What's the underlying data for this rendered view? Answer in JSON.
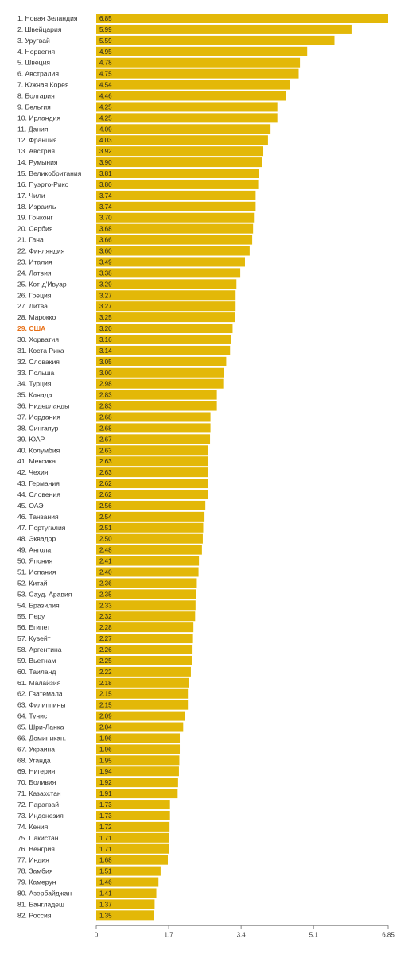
{
  "chart_data": {
    "type": "bar",
    "orientation": "horizontal",
    "bar_color": "#e3b808",
    "highlight_color": "#e8721a",
    "highlight_category": "29. США",
    "xlim": [
      0,
      6.85
    ],
    "xticks": [
      "0",
      "1.7",
      "3.4",
      "5.1",
      "6.85"
    ],
    "grid": false,
    "categories": [
      "1. Новая Зеландия",
      "2. Швейцария",
      "3. Уругвай",
      "4. Норвегия",
      "5. Швеция",
      "6. Австралия",
      "7. Южная Корея",
      "8. Болгария",
      "9. Бельгия",
      "10. Ирландия",
      "11. Дания",
      "12. Франция",
      "13. Австрия",
      "14. Румыния",
      "15. Великобритания",
      "16. Пуэрто-Рико",
      "17. Чили",
      "18. Израиль",
      "19. Гонконг",
      "20. Сербия",
      "21. Гана",
      "22. Финляндия",
      "23. Италия",
      "24. Латвия",
      "25. Кот-д'Ивуар",
      "26. Греция",
      "27. Литва",
      "28. Марокко",
      "29. США",
      "30. Хорватия",
      "31. Коста Рика",
      "32. Словакия",
      "33. Польша",
      "34. Турция",
      "35. Канада",
      "36. Нидерланды",
      "37. Иордания",
      "38. Сингапур",
      "39. ЮАР",
      "40. Колумбия",
      "41. Мексика",
      "42. Чехия",
      "43. Германия",
      "44. Словения",
      "45. ОАЭ",
      "46. Танзания",
      "47. Португалия",
      "48. Эквадор",
      "49. Ангола",
      "50. Япония",
      "51. Испания",
      "52. Китай",
      "53. Сауд. Аравия",
      "54. Бразилия",
      "55. Перу",
      "56. Египет",
      "57. Кувейт",
      "58. Аргентина",
      "59. Вьетнам",
      "60. Таиланд",
      "61. Малайзия",
      "62. Гватемала",
      "63. Филиппины",
      "64. Тунис",
      "65. Шри-Ланка",
      "66. Доминикан.",
      "67. Украина",
      "68. Уганда",
      "69. Нигерия",
      "70. Боливия",
      "71. Казахстан",
      "72. Парагвай",
      "73. Индонезия",
      "74. Кения",
      "75. Пакистан",
      "76. Венгрия",
      "77. Индия",
      "78. Замбия",
      "79. Камерун",
      "80. Азербайджан",
      "81. Бангладеш",
      "82. Россия"
    ],
    "values": [
      6.85,
      5.99,
      5.59,
      4.95,
      4.78,
      4.75,
      4.54,
      4.46,
      4.25,
      4.25,
      4.09,
      4.03,
      3.92,
      3.9,
      3.81,
      3.8,
      3.74,
      3.74,
      3.7,
      3.68,
      3.66,
      3.6,
      3.49,
      3.38,
      3.29,
      3.27,
      3.27,
      3.25,
      3.2,
      3.16,
      3.14,
      3.05,
      3.0,
      2.98,
      2.83,
      2.83,
      2.68,
      2.68,
      2.67,
      2.63,
      2.63,
      2.63,
      2.62,
      2.62,
      2.56,
      2.54,
      2.51,
      2.5,
      2.48,
      2.41,
      2.4,
      2.36,
      2.35,
      2.33,
      2.32,
      2.28,
      2.27,
      2.26,
      2.25,
      2.22,
      2.18,
      2.15,
      2.15,
      2.09,
      2.04,
      1.96,
      1.96,
      1.95,
      1.94,
      1.92,
      1.91,
      1.73,
      1.73,
      1.72,
      1.71,
      1.71,
      1.68,
      1.51,
      1.46,
      1.41,
      1.37,
      1.35
    ],
    "value_labels": [
      "6.85",
      "5.99",
      "5.59",
      "4.95",
      "4.78",
      "4.75",
      "4.54",
      "4.46",
      "4.25",
      "4.25",
      "4.09",
      "4.03",
      "3.92",
      "3.90",
      "3.81",
      "3.80",
      "3.74",
      "3.74",
      "3.70",
      "3.68",
      "3.66",
      "3.60",
      "3.49",
      "3.38",
      "3.29",
      "3.27",
      "3.27",
      "3.25",
      "3.20",
      "3.16",
      "3.14",
      "3.05",
      "3.00",
      "2.98",
      "2.83",
      "2.83",
      "2.68",
      "2.68",
      "2.67",
      "2.63",
      "2.63",
      "2.63",
      "2.62",
      "2.62",
      "2.56",
      "2.54",
      "2.51",
      "2.50",
      "2.48",
      "2.41",
      "2.40",
      "2.36",
      "2.35",
      "2.33",
      "2.32",
      "2.28",
      "2.27",
      "2.26",
      "2.25",
      "2.22",
      "2.18",
      "2.15",
      "2.15",
      "2.09",
      "2.04",
      "1.96",
      "1.96",
      "1.95",
      "1.94",
      "1.92",
      "1.91",
      "1.73",
      "1.73",
      "1.72",
      "1.71",
      "1.71",
      "1.68",
      "1.51",
      "1.46",
      "1.41",
      "1.37",
      "1.35"
    ]
  }
}
